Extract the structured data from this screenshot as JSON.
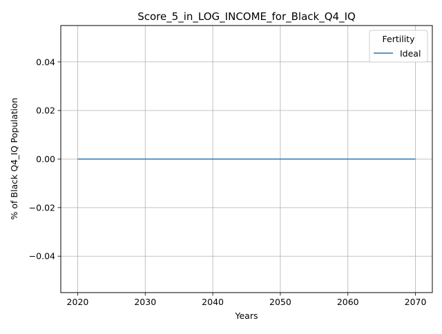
{
  "chart_data": {
    "type": "line",
    "title": "Score_5_in_LOG_INCOME_for_Black_Q4_IQ",
    "xlabel": "Years",
    "ylabel": "% of Black Q4_IQ Population",
    "xlim": [
      2017.5,
      2072.5
    ],
    "ylim": [
      -0.055,
      0.055
    ],
    "xticks": [
      2020,
      2030,
      2040,
      2050,
      2060,
      2070
    ],
    "xtick_labels": [
      "2020",
      "2030",
      "2040",
      "2050",
      "2060",
      "2070"
    ],
    "yticks": [
      -0.04,
      -0.02,
      0.0,
      0.02,
      0.04
    ],
    "ytick_labels": [
      "−0.04",
      "−0.02",
      "0.00",
      "0.02",
      "0.04"
    ],
    "grid": true,
    "legend": {
      "title": "Fertility",
      "placement": "top-right"
    },
    "series": [
      {
        "name": "Ideal",
        "color": "#1f77b4",
        "x": [
          2020,
          2030,
          2040,
          2050,
          2060,
          2070
        ],
        "values": [
          0,
          0,
          0,
          0,
          0,
          0
        ]
      }
    ]
  }
}
